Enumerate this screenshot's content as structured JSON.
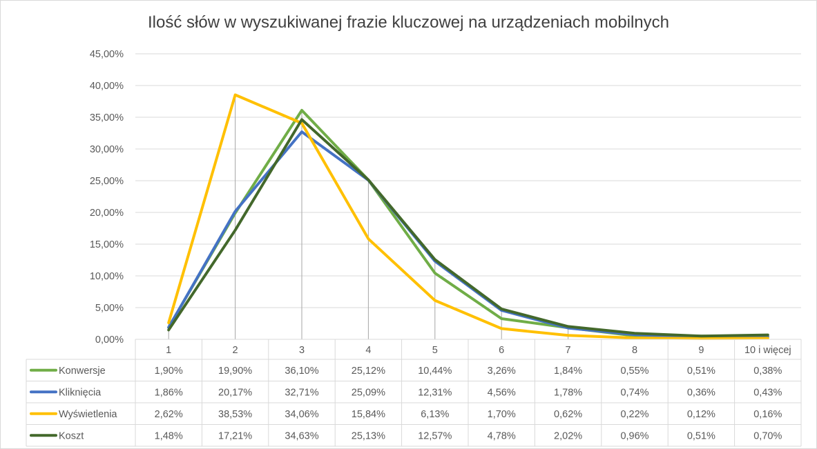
{
  "chart_data": {
    "type": "line",
    "title": "Ilość słów w wyszukiwanej frazie kluczowej na urządzeniach mobilnych",
    "xlabel": "",
    "ylabel": "",
    "ylim": [
      0,
      45
    ],
    "yticks": [
      "0,00%",
      "5,00%",
      "10,00%",
      "15,00%",
      "20,00%",
      "25,00%",
      "30,00%",
      "35,00%",
      "40,00%",
      "45,00%"
    ],
    "grid": true,
    "legend": "data-table-left",
    "categories": [
      "1",
      "2",
      "3",
      "4",
      "5",
      "6",
      "7",
      "8",
      "9",
      "10 i więcej"
    ],
    "series": [
      {
        "name": "Konwersje",
        "color": "#70ad47",
        "values": [
          1.9,
          19.9,
          36.1,
          25.12,
          10.44,
          3.26,
          1.84,
          0.55,
          0.51,
          0.38
        ],
        "labels": [
          "1,90%",
          "19,90%",
          "36,10%",
          "25,12%",
          "10,44%",
          "3,26%",
          "1,84%",
          "0,55%",
          "0,51%",
          "0,38%"
        ]
      },
      {
        "name": "Kliknięcia",
        "color": "#4472c4",
        "values": [
          1.86,
          20.17,
          32.71,
          25.09,
          12.31,
          4.56,
          1.78,
          0.74,
          0.36,
          0.43
        ],
        "labels": [
          "1,86%",
          "20,17%",
          "32,71%",
          "25,09%",
          "12,31%",
          "4,56%",
          "1,78%",
          "0,74%",
          "0,36%",
          "0,43%"
        ]
      },
      {
        "name": "Wyświetlenia",
        "color": "#ffc000",
        "values": [
          2.62,
          38.53,
          34.06,
          15.84,
          6.13,
          1.7,
          0.62,
          0.22,
          0.12,
          0.16
        ],
        "labels": [
          "2,62%",
          "38,53%",
          "34,06%",
          "15,84%",
          "6,13%",
          "1,70%",
          "0,62%",
          "0,22%",
          "0,12%",
          "0,16%"
        ]
      },
      {
        "name": "Koszt",
        "color": "#43682b",
        "values": [
          1.48,
          17.21,
          34.63,
          25.13,
          12.57,
          4.78,
          2.02,
          0.96,
          0.51,
          0.7
        ],
        "labels": [
          "1,48%",
          "17,21%",
          "34,63%",
          "25,13%",
          "12,57%",
          "4,78%",
          "2,02%",
          "0,96%",
          "0,51%",
          "0,70%"
        ]
      }
    ]
  }
}
